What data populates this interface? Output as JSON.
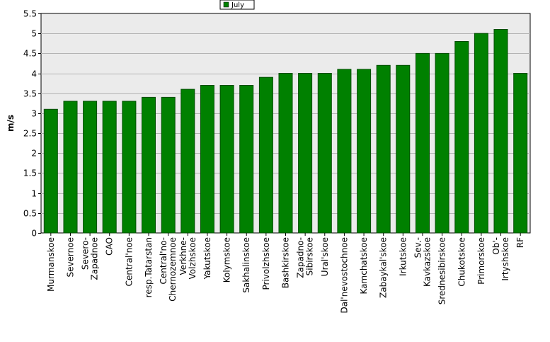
{
  "chart_data": {
    "type": "bar",
    "title": "",
    "xlabel": "",
    "ylabel": "m/s",
    "ylim": [
      0,
      5.5
    ],
    "yticks": [
      0,
      0.5,
      1,
      1.5,
      2,
      2.5,
      3,
      3.5,
      4,
      4.5,
      5,
      5.5
    ],
    "grid": true,
    "legend_position": "top-center",
    "colors": {
      "bar": "#008000",
      "bar_border": "#004d00",
      "plot_bg": "#ebebeb",
      "grid": "#b4b4b4"
    },
    "categories": [
      [
        "Murmanskoe"
      ],
      [
        "Severnoe"
      ],
      [
        "Severo-",
        "Zapadnoe"
      ],
      [
        "CAO"
      ],
      [
        "Central'noe"
      ],
      [
        "resp.Tatarstan"
      ],
      [
        "Central'no-",
        "Chernozemnoe"
      ],
      [
        "Verkhne-",
        "Volzhskoe"
      ],
      [
        "Yakutskoe"
      ],
      [
        "Kolymskoe"
      ],
      [
        "Sakhalinskoe"
      ],
      [
        "Privolzhskoe"
      ],
      [
        "Bashkirskoe"
      ],
      [
        "Zapadno-",
        "Sibirskoe"
      ],
      [
        "Ural'skoe"
      ],
      [
        "Dal'nevostochnoe"
      ],
      [
        "Kamchatskoe"
      ],
      [
        "Zabaykal'skoe"
      ],
      [
        "Irkutskoe"
      ],
      [
        "Sev.-",
        "Kavkazskoe"
      ],
      [
        "Srednesibirskoe"
      ],
      [
        "Chukotskoe"
      ],
      [
        "Primorskoe"
      ],
      [
        "Ob'-",
        "Irtyshskoe"
      ],
      [
        "RF"
      ]
    ],
    "series": [
      {
        "name": "July",
        "values": [
          3.1,
          3.3,
          3.3,
          3.3,
          3.3,
          3.4,
          3.4,
          3.6,
          3.7,
          3.7,
          3.7,
          3.9,
          4.0,
          4.0,
          4.0,
          4.1,
          4.1,
          4.2,
          4.2,
          4.5,
          4.5,
          4.8,
          5.0,
          5.1,
          4.0
        ]
      }
    ]
  }
}
